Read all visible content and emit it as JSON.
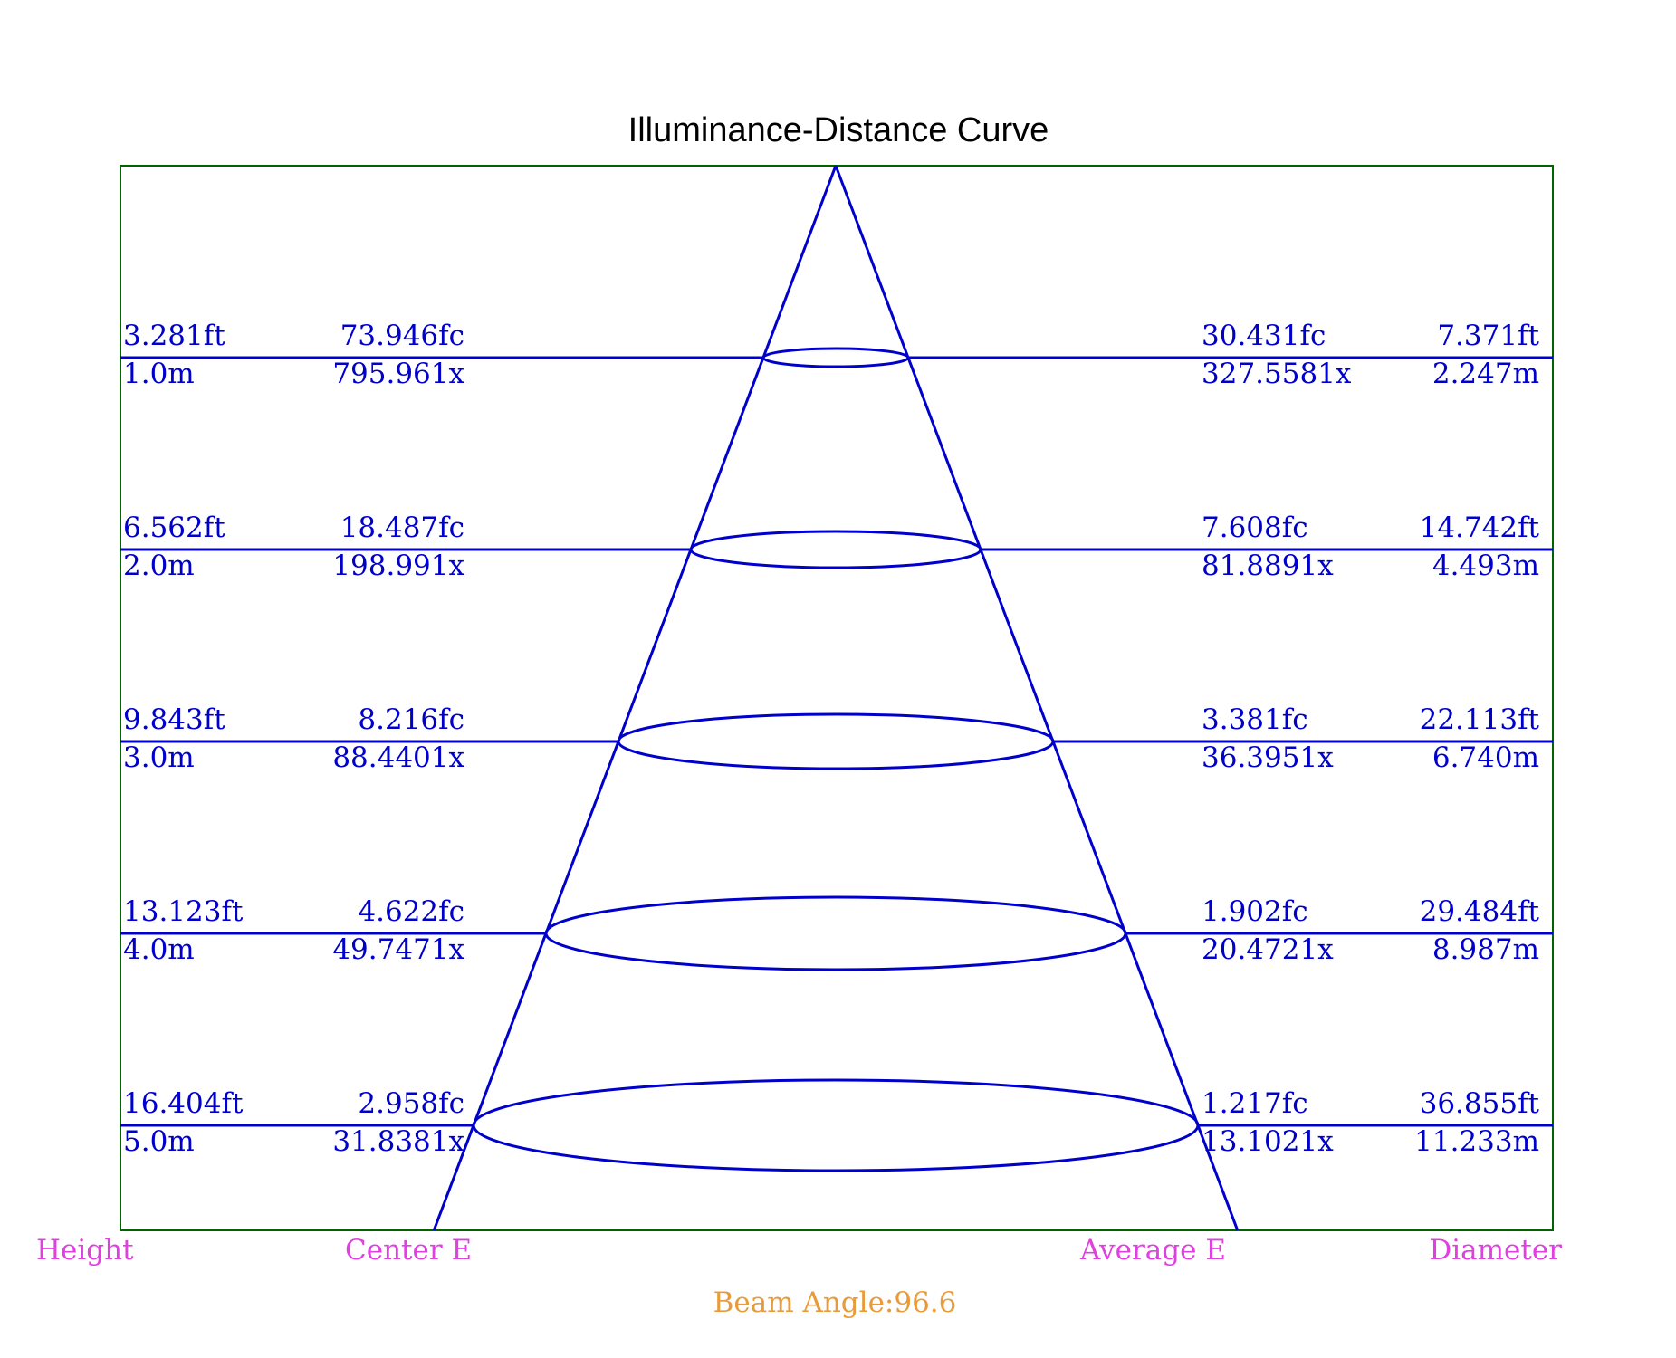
{
  "chart_data": {
    "type": "illuminance-distance-cone",
    "title": "Illuminance-Distance Curve",
    "rows": [
      {
        "height_ft": "3.281ft",
        "height_m": "1.0m",
        "center_fc": "73.946fc",
        "center_lx": "795.961x",
        "avg_fc": "30.431fc",
        "avg_lx": "327.5581x",
        "dia_ft": "7.371ft",
        "dia_m": "2.247m",
        "height": 1.0,
        "diameter": 2.247
      },
      {
        "height_ft": "6.562ft",
        "height_m": "2.0m",
        "center_fc": "18.487fc",
        "center_lx": "198.991x",
        "avg_fc": "7.608fc",
        "avg_lx": "81.8891x",
        "dia_ft": "14.742ft",
        "dia_m": "4.493m",
        "height": 2.0,
        "diameter": 4.493
      },
      {
        "height_ft": "9.843ft",
        "height_m": "3.0m",
        "center_fc": "8.216fc",
        "center_lx": "88.4401x",
        "avg_fc": "3.381fc",
        "avg_lx": "36.3951x",
        "dia_ft": "22.113ft",
        "dia_m": "6.740m",
        "height": 3.0,
        "diameter": 6.74
      },
      {
        "height_ft": "13.123ft",
        "height_m": "4.0m",
        "center_fc": "4.622fc",
        "center_lx": "49.7471x",
        "avg_fc": "1.902fc",
        "avg_lx": "20.4721x",
        "dia_ft": "29.484ft",
        "dia_m": "8.987m",
        "height": 4.0,
        "diameter": 8.987
      },
      {
        "height_ft": "16.404ft",
        "height_m": "5.0m",
        "center_fc": "2.958fc",
        "center_lx": "31.8381x",
        "avg_fc": "1.217fc",
        "avg_lx": "13.1021x",
        "dia_ft": "36.855ft",
        "dia_m": "11.233m",
        "height": 5.0,
        "diameter": 11.233
      }
    ],
    "column_labels": {
      "height": "Height",
      "center": "Center E",
      "average": "Average E",
      "diameter": "Diameter"
    },
    "beam_angle_label": "Beam Angle:96.6",
    "colors": {
      "lines": "#0000cc",
      "frame": "#006400",
      "column_labels": "#e040e0",
      "beam_label": "#e89b3a",
      "title": "#000000"
    }
  }
}
